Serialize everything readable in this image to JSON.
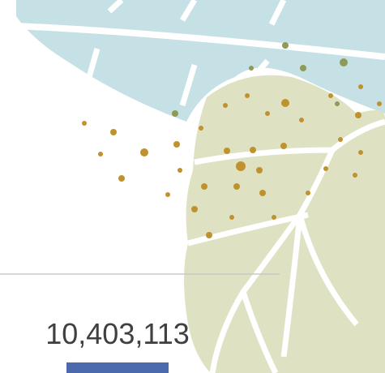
{
  "label": "10,403,113"
}
